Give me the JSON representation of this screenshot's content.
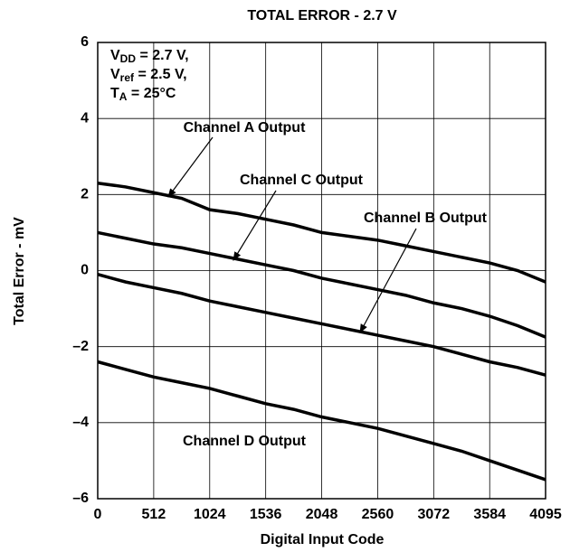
{
  "chart_data": {
    "type": "line",
    "title": "TOTAL ERROR - 2.7 V",
    "xlabel": "Digital Input Code",
    "ylabel": "Total Error - mV",
    "x": [
      0,
      256,
      512,
      768,
      1024,
      1280,
      1536,
      1792,
      2048,
      2304,
      2560,
      2816,
      3072,
      3328,
      3584,
      3840,
      4095
    ],
    "series": [
      {
        "name": "Channel A Output",
        "color": "#000000",
        "values": [
          2.3,
          2.2,
          2.05,
          1.9,
          1.6,
          1.5,
          1.35,
          1.2,
          1.0,
          0.9,
          0.8,
          0.65,
          0.5,
          0.35,
          0.2,
          0.0,
          -0.3
        ]
      },
      {
        "name": "Channel C Output",
        "color": "#000000",
        "values": [
          1.0,
          0.85,
          0.7,
          0.6,
          0.45,
          0.3,
          0.15,
          0.0,
          -0.2,
          -0.35,
          -0.5,
          -0.65,
          -0.85,
          -1.0,
          -1.2,
          -1.45,
          -1.75
        ]
      },
      {
        "name": "Channel B Output",
        "color": "#000000",
        "values": [
          -0.1,
          -0.3,
          -0.45,
          -0.6,
          -0.8,
          -0.95,
          -1.1,
          -1.25,
          -1.4,
          -1.55,
          -1.7,
          -1.85,
          -2.0,
          -2.2,
          -2.4,
          -2.55,
          -2.75
        ]
      },
      {
        "name": "Channel D Output",
        "color": "#000000",
        "values": [
          -2.4,
          -2.6,
          -2.8,
          -2.95,
          -3.1,
          -3.3,
          -3.5,
          -3.65,
          -3.85,
          -4.0,
          -4.15,
          -4.35,
          -4.55,
          -4.75,
          -5.0,
          -5.25,
          -5.5
        ]
      }
    ],
    "conditions": [
      {
        "main": "V",
        "sub": "DD",
        "rest": " = 2.7 V,"
      },
      {
        "main": "V",
        "sub": "ref",
        "rest": " = 2.5 V,"
      },
      {
        "main": "T",
        "sub": "A",
        "rest": " = 25°C"
      }
    ],
    "xlim": [
      0,
      4095
    ],
    "xticks": [
      0,
      512,
      1024,
      1536,
      2048,
      2560,
      3072,
      3584,
      4095
    ],
    "ylim": [
      -6,
      6
    ],
    "yticks": [
      {
        "value": -6,
        "label": "–6"
      },
      {
        "value": -4,
        "label": "–4"
      },
      {
        "value": -2,
        "label": "–2"
      },
      0,
      2,
      4,
      6
    ],
    "grid": true
  }
}
